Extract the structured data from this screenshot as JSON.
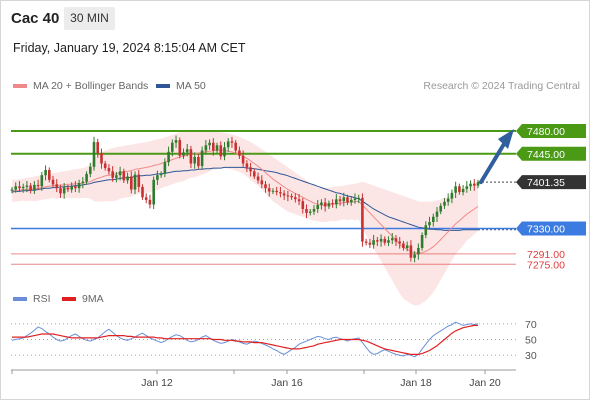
{
  "header": {
    "instrument": "Cac 40",
    "timeframe": "30 MIN",
    "datetime": "Friday, January 19, 2024 8:15:04 AM CET",
    "credit": "Research © 2024 Trading Central"
  },
  "colors": {
    "ma20": "#f08a8a",
    "ma50": "#2f5797",
    "resistance": "#4a9a16",
    "support": "#3c7be0",
    "target": "#e03b3b",
    "up_candle": "#2e7d2e",
    "down_candle": "#c93131",
    "current": "#333333",
    "arrow": "#2f5f9d",
    "rsi": "#6a8fd8",
    "rsi_ma": "#e02020"
  },
  "chart_data": [
    {
      "type": "candlestick",
      "legend": [
        "MA 20 + Bollinger Bands",
        "MA 50"
      ],
      "x_ticks": [
        "Jan 12",
        "Jan 16",
        "Jan 18",
        "Jan 20"
      ],
      "levels": {
        "resistance": [
          "7480.00",
          "7445.00"
        ],
        "current": "7401.35",
        "support": [
          "7330.00"
        ],
        "targets": [
          "7291.00",
          "7275.00"
        ]
      },
      "y_range": [
        7240,
        7520
      ],
      "close": [
        7390,
        7395,
        7392,
        7394,
        7396,
        7388,
        7397,
        7395,
        7412,
        7420,
        7405,
        7398,
        7392,
        7384,
        7393,
        7390,
        7395,
        7392,
        7400,
        7402,
        7414,
        7425,
        7463,
        7446,
        7430,
        7423,
        7418,
        7408,
        7412,
        7418,
        7404,
        7410,
        7390,
        7413,
        7394,
        7378,
        7374,
        7367,
        7405,
        7412,
        7414,
        7432,
        7448,
        7462,
        7466,
        7442,
        7447,
        7452,
        7430,
        7440,
        7426,
        7450,
        7458,
        7462,
        7450,
        7458,
        7441,
        7455,
        7464,
        7462,
        7450,
        7442,
        7430,
        7424,
        7418,
        7410,
        7404,
        7398,
        7392,
        7387,
        7388,
        7386,
        7384,
        7381,
        7380,
        7378,
        7375,
        7372,
        7360,
        7354,
        7356,
        7360,
        7366,
        7370,
        7364,
        7369,
        7367,
        7375,
        7372,
        7378,
        7370,
        7374,
        7376,
        7377,
        7310,
        7308,
        7305,
        7312,
        7310,
        7314,
        7308,
        7312,
        7315,
        7310,
        7307,
        7300,
        7304,
        7285,
        7290,
        7300,
        7320,
        7335,
        7340,
        7348,
        7356,
        7365,
        7371,
        7376,
        7385,
        7395,
        7386,
        7391,
        7395,
        7399,
        7396,
        7401
      ],
      "ma20": [
        7388,
        7388,
        7389,
        7390,
        7390,
        7391,
        7391,
        7392,
        7393,
        7394,
        7395,
        7396,
        7396,
        7397,
        7397,
        7398,
        7398,
        7399,
        7399,
        7400,
        7401,
        7402,
        7405,
        7407,
        7409,
        7411,
        7412,
        7413,
        7414,
        7416,
        7417,
        7418,
        7419,
        7421,
        7422,
        7423,
        7424,
        7425,
        7427,
        7428,
        7430,
        7432,
        7434,
        7436,
        7438,
        7440,
        7441,
        7443,
        7444,
        7445,
        7446,
        7447,
        7448,
        7449,
        7450,
        7450,
        7451,
        7450,
        7449,
        7448,
        7446,
        7444,
        7441,
        7438,
        7434,
        7430,
        7426,
        7421,
        7416,
        7411,
        7406,
        7402,
        7398,
        7394,
        7390,
        7387,
        7384,
        7381,
        7378,
        7375,
        7372,
        7369,
        7367,
        7366,
        7366,
        7367,
        7368,
        7368,
        7369,
        7370,
        7370,
        7371,
        7371,
        7372,
        7366,
        7360,
        7354,
        7348,
        7342,
        7336,
        7330,
        7324,
        7318,
        7312,
        7306,
        7301,
        7298,
        7295,
        7293,
        7292,
        7293,
        7295,
        7298,
        7302,
        7307,
        7313,
        7319,
        7325,
        7331,
        7337,
        7342,
        7347,
        7352,
        7356,
        7360,
        7364
      ],
      "bb_upper": [
        7405,
        7405,
        7406,
        7407,
        7408,
        7409,
        7410,
        7411,
        7412,
        7413,
        7414,
        7415,
        7416,
        7417,
        7418,
        7419,
        7420,
        7421,
        7422,
        7423,
        7425,
        7428,
        7438,
        7443,
        7447,
        7450,
        7452,
        7454,
        7455,
        7456,
        7457,
        7458,
        7459,
        7460,
        7461,
        7462,
        7463,
        7464,
        7466,
        7467,
        7468,
        7470,
        7472,
        7474,
        7476,
        7478,
        7479,
        7480,
        7480,
        7481,
        7481,
        7481,
        7481,
        7480,
        7480,
        7479,
        7478,
        7477,
        7476,
        7475,
        7473,
        7471,
        7468,
        7466,
        7463,
        7460,
        7456,
        7452,
        7448,
        7444,
        7440,
        7436,
        7432,
        7428,
        7424,
        7420,
        7416,
        7412,
        7408,
        7404,
        7400,
        7396,
        7393,
        7392,
        7392,
        7393,
        7394,
        7395,
        7395,
        7396,
        7397,
        7398,
        7399,
        7400,
        7402,
        7400,
        7398,
        7396,
        7394,
        7392,
        7390,
        7388,
        7386,
        7384,
        7382,
        7380,
        7378,
        7376,
        7374,
        7372,
        7371,
        7371,
        7371,
        7372,
        7373,
        7375,
        7377,
        7379,
        7381,
        7384,
        7387,
        7390,
        7393,
        7396,
        7399,
        7402
      ],
      "bb_lower": [
        7371,
        7371,
        7372,
        7373,
        7372,
        7373,
        7372,
        7373,
        7374,
        7375,
        7376,
        7377,
        7376,
        7377,
        7376,
        7377,
        7376,
        7377,
        7376,
        7377,
        7377,
        7376,
        7372,
        7371,
        7371,
        7372,
        7372,
        7372,
        7373,
        7376,
        7377,
        7378,
        7379,
        7382,
        7383,
        7384,
        7385,
        7386,
        7388,
        7389,
        7392,
        7394,
        7396,
        7398,
        7400,
        7402,
        7403,
        7406,
        7408,
        7409,
        7411,
        7413,
        7415,
        7418,
        7420,
        7421,
        7424,
        7423,
        7422,
        7421,
        7419,
        7417,
        7414,
        7410,
        7405,
        7400,
        7396,
        7390,
        7384,
        7378,
        7372,
        7368,
        7364,
        7360,
        7356,
        7354,
        7352,
        7350,
        7348,
        7346,
        7344,
        7342,
        7341,
        7340,
        7340,
        7341,
        7342,
        7341,
        7343,
        7344,
        7343,
        7344,
        7343,
        7344,
        7330,
        7320,
        7310,
        7300,
        7290,
        7280,
        7270,
        7260,
        7250,
        7240,
        7230,
        7222,
        7218,
        7214,
        7212,
        7212,
        7215,
        7219,
        7225,
        7232,
        7241,
        7251,
        7261,
        7271,
        7281,
        7290,
        7297,
        7304,
        7311,
        7316,
        7321,
        7326
      ],
      "ma50": [
        7386,
        7387,
        7387,
        7388,
        7388,
        7389,
        7389,
        7390,
        7391,
        7392,
        7392,
        7393,
        7393,
        7394,
        7394,
        7395,
        7395,
        7396,
        7396,
        7397,
        7398,
        7399,
        7401,
        7402,
        7403,
        7404,
        7405,
        7405,
        7406,
        7407,
        7408,
        7408,
        7409,
        7410,
        7411,
        7411,
        7412,
        7412,
        7413,
        7414,
        7414,
        7415,
        7416,
        7417,
        7418,
        7418,
        7419,
        7419,
        7420,
        7420,
        7421,
        7421,
        7422,
        7422,
        7423,
        7423,
        7423,
        7424,
        7424,
        7424,
        7424,
        7424,
        7424,
        7423,
        7423,
        7422,
        7421,
        7420,
        7419,
        7418,
        7417,
        7416,
        7414,
        7413,
        7411,
        7409,
        7407,
        7405,
        7403,
        7401,
        7399,
        7397,
        7395,
        7393,
        7391,
        7389,
        7387,
        7385,
        7384,
        7382,
        7380,
        7379,
        7377,
        7376,
        7372,
        7368,
        7364,
        7360,
        7357,
        7354,
        7351,
        7348,
        7346,
        7344,
        7342,
        7340,
        7338,
        7336,
        7334,
        7332,
        7331,
        7330,
        7329,
        7329,
        7328,
        7328,
        7327,
        7327,
        7327,
        7327,
        7327,
        7328,
        7328,
        7328,
        7328,
        7328
      ]
    },
    {
      "type": "line",
      "legend": [
        "RSI",
        "9MA"
      ],
      "y_ticks": [
        "70",
        "50",
        "30"
      ],
      "y_range": [
        15,
        85
      ],
      "rsi": [
        49,
        50,
        51,
        52,
        55,
        58,
        62,
        66,
        64,
        60,
        57,
        53,
        50,
        48,
        49,
        52,
        55,
        57,
        54,
        51,
        49,
        48,
        50,
        52,
        56,
        60,
        63,
        59,
        55,
        52,
        50,
        49,
        51,
        53,
        56,
        58,
        55,
        52,
        50,
        48,
        46,
        48,
        51,
        54,
        56,
        55,
        52,
        49,
        47,
        48,
        50,
        53,
        55,
        52,
        49,
        47,
        45,
        46,
        48,
        50,
        49,
        47,
        45,
        44,
        46,
        48,
        47,
        45,
        43,
        41,
        38,
        36,
        33,
        31,
        34,
        37,
        40,
        44,
        46,
        48,
        50,
        52,
        54,
        53,
        51,
        50,
        52,
        53,
        51,
        50,
        48,
        50,
        51,
        52,
        46,
        40,
        34,
        31,
        32,
        35,
        37,
        35,
        33,
        31,
        30,
        29,
        31,
        30,
        28,
        31,
        38,
        44,
        50,
        55,
        58,
        61,
        64,
        67,
        69,
        72,
        70,
        68,
        69,
        70,
        69,
        70
      ],
      "rsi_ma": [
        53,
        53,
        53,
        53,
        53,
        54,
        55,
        56,
        57,
        57,
        57,
        57,
        56,
        55,
        54,
        53,
        52,
        52,
        52,
        52,
        52,
        52,
        52,
        52,
        53,
        54,
        55,
        55,
        55,
        55,
        55,
        54,
        54,
        53,
        53,
        53,
        53,
        53,
        53,
        52,
        52,
        51,
        51,
        51,
        51,
        51,
        51,
        51,
        51,
        51,
        51,
        51,
        51,
        51,
        50,
        50,
        50,
        49,
        49,
        49,
        48,
        48,
        47,
        47,
        47,
        46,
        46,
        46,
        45,
        44,
        43,
        42,
        41,
        40,
        39,
        38,
        38,
        38,
        39,
        40,
        41,
        42,
        44,
        45,
        46,
        47,
        48,
        49,
        50,
        50,
        50,
        50,
        50,
        50,
        49,
        48,
        46,
        44,
        42,
        40,
        38,
        37,
        36,
        35,
        34,
        33,
        32,
        31,
        31,
        31,
        32,
        34,
        36,
        39,
        42,
        46,
        50,
        54,
        58,
        61,
        63,
        65,
        66,
        67,
        68,
        68
      ]
    }
  ]
}
